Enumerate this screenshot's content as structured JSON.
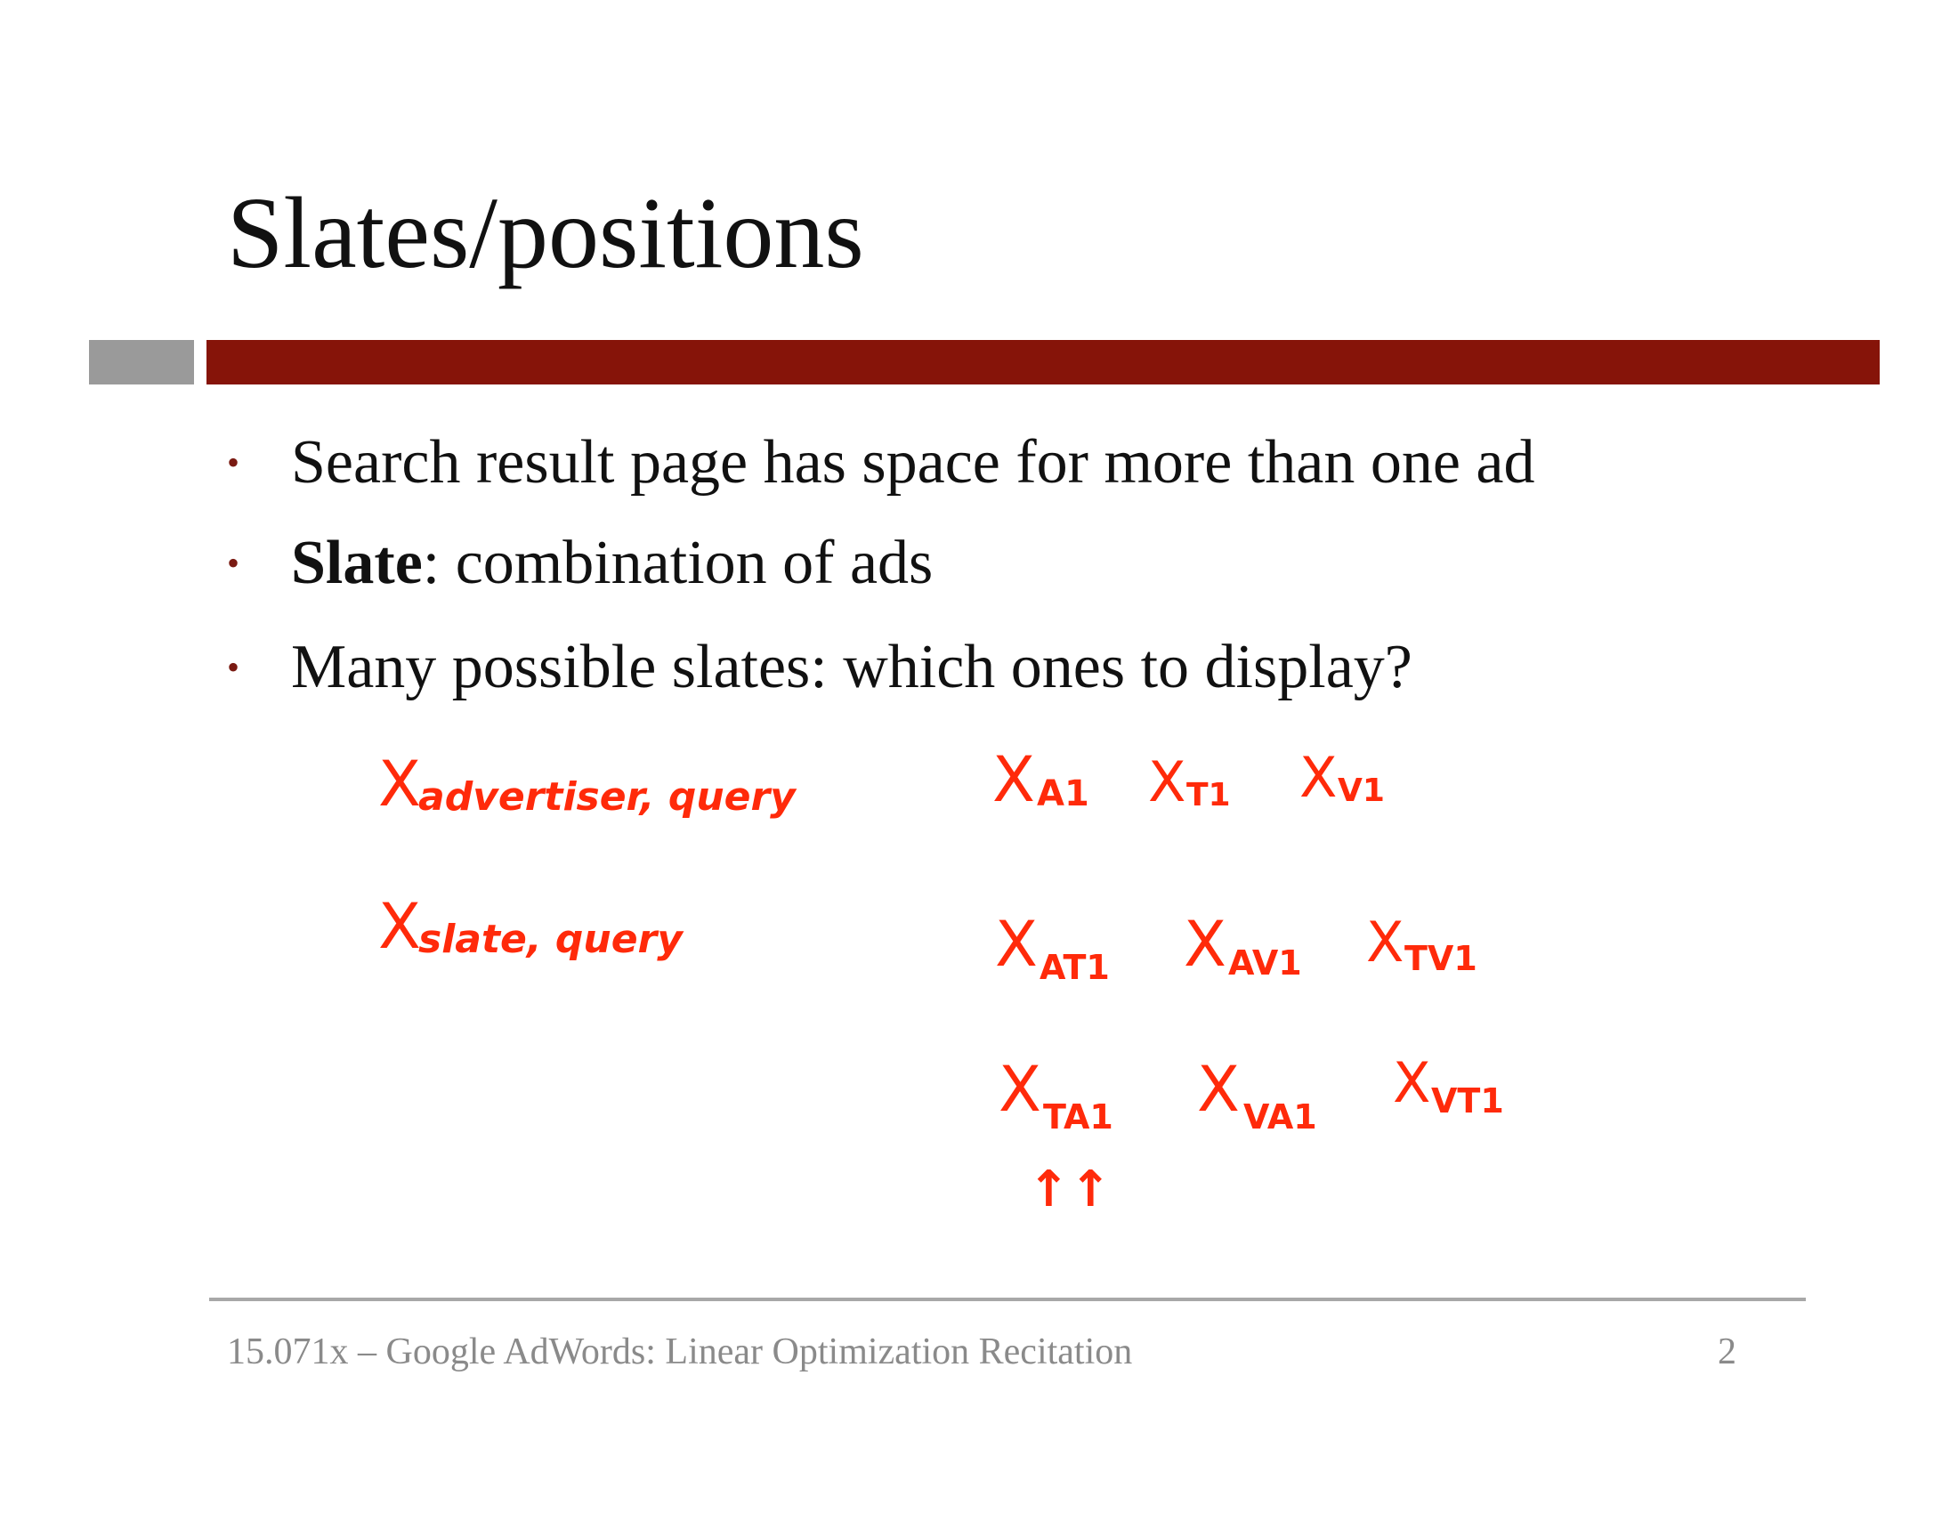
{
  "title": "Slates/positions",
  "bullets": [
    {
      "bold": "",
      "text": "Search result page has space for more than one ad"
    },
    {
      "bold": "Slate",
      "text": ": combination of  ads"
    },
    {
      "bold": "",
      "text": "Many possible slates: which ones to display?"
    }
  ],
  "bullet_glyph": "•",
  "annotations": {
    "ink_color": "#ff2a0a",
    "variable_letter": "X",
    "left_column": [
      "advertiser, query",
      "slate, query"
    ],
    "right_grid": [
      [
        "A1",
        "T1",
        "V1"
      ],
      [
        "AT1",
        "AV1",
        "TV1"
      ],
      [
        "TA1",
        "VA1",
        "VT1"
      ]
    ],
    "arrows": "↑↑"
  },
  "footer": {
    "text": "15.071x – Google AdWords: Linear Optimization Recitation",
    "page": "2"
  },
  "colors": {
    "accent_red": "#861409",
    "accent_gray": "#9a9a9a",
    "footer_gray": "#8a8a8a"
  }
}
